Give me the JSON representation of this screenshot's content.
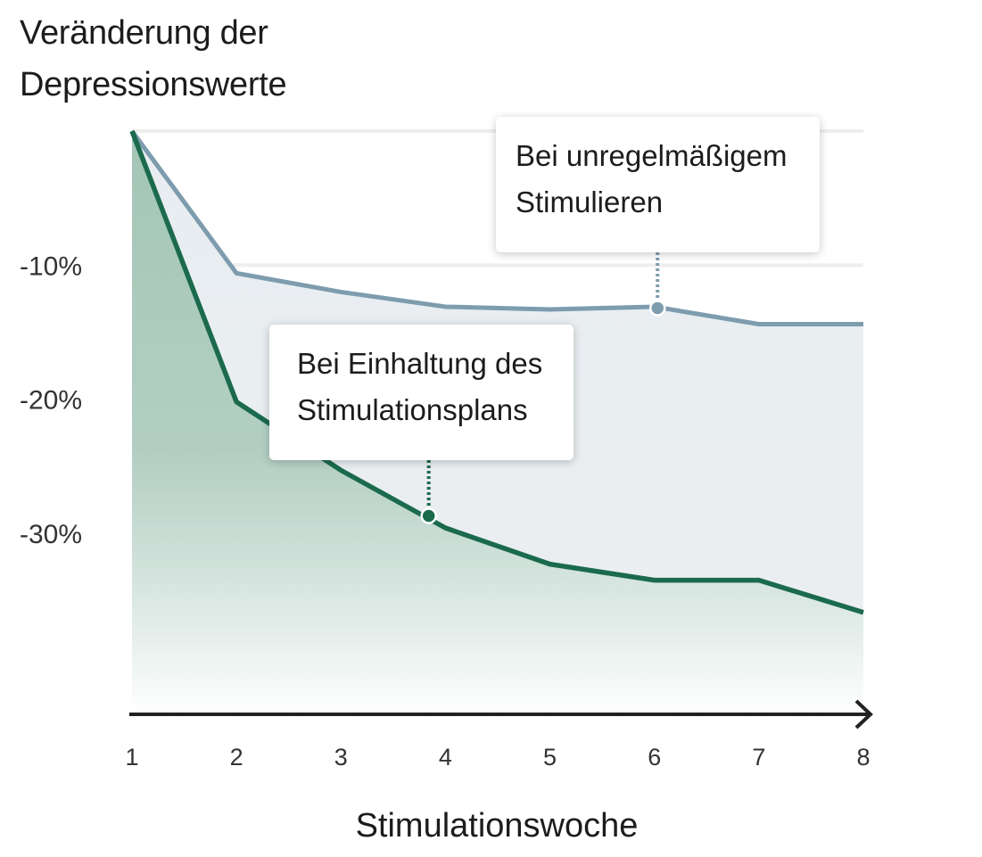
{
  "chart_data": {
    "type": "area",
    "title": "Veränderung der Depressionswerte",
    "xlabel": "Stimulationswoche",
    "ylabel": "",
    "x": [
      1,
      2,
      3,
      4,
      5,
      6,
      7,
      8
    ],
    "x_tick_labels": [
      "1",
      "2",
      "3",
      "4",
      "5",
      "6",
      "7",
      "8"
    ],
    "y_tick_labels": [
      "-10%",
      "-20%",
      "-30%"
    ],
    "y_ticks": [
      -10,
      -20,
      -30
    ],
    "ylim": [
      -43.5,
      0
    ],
    "xlim": [
      1,
      8
    ],
    "grid": true,
    "series": [
      {
        "name": "Bei unregelmäßigem Stimulieren",
        "values": [
          0,
          -10.6,
          -12.0,
          -13.1,
          -13.3,
          -13.1,
          -14.4,
          -14.4
        ],
        "color": "#7d9cae",
        "fill": "#e8edf1"
      },
      {
        "name": "Bei Einhaltung des Stimulationsplans",
        "values": [
          0,
          -20.2,
          -25.3,
          -29.6,
          -32.3,
          -33.5,
          -33.5,
          -35.9
        ],
        "color": "#1b6a4e",
        "fill": "#a9c9bb"
      }
    ],
    "annotations": [
      {
        "text_lines": [
          "Bei unregelmäßigem",
          "Stimulieren"
        ],
        "series": 0,
        "x": 6.03,
        "y": -13.2
      },
      {
        "text_lines": [
          "Bei Einhaltung des",
          "Stimulationsplans"
        ],
        "series": 1,
        "x": 3.84,
        "y": -28.7
      }
    ]
  }
}
